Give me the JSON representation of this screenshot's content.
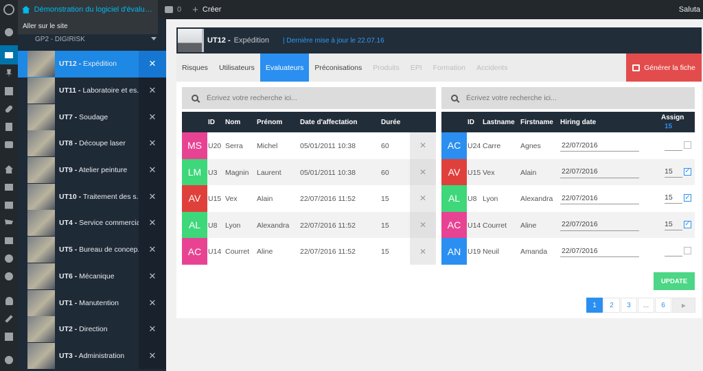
{
  "adminbar": {
    "site_title": "Démonstration du logiciel d'évaluat...",
    "comments_count": "0",
    "new_label": "Créer",
    "greeting": "Saluta",
    "site_dropdown": "Aller sur le site"
  },
  "sidebar": {
    "group": "GP2 - DIGIRISK",
    "units": [
      {
        "ref": "UT12 -",
        "name": "Expédition"
      },
      {
        "ref": "UT11 -",
        "name": "Laboratoire et es..."
      },
      {
        "ref": "UT7 -",
        "name": "Soudage"
      },
      {
        "ref": "UT8 -",
        "name": "Découpe laser"
      },
      {
        "ref": "UT9 -",
        "name": "Atelier peinture"
      },
      {
        "ref": "UT10 -",
        "name": "Traitement des s..."
      },
      {
        "ref": "UT4 -",
        "name": "Service commercial"
      },
      {
        "ref": "UT5 -",
        "name": "Bureau de concep..."
      },
      {
        "ref": "UT6 -",
        "name": "Mécanique"
      },
      {
        "ref": "UT1 -",
        "name": "Manutention"
      },
      {
        "ref": "UT2 -",
        "name": "Direction"
      },
      {
        "ref": "UT3 -",
        "name": "Administration"
      }
    ],
    "close_glyph": "✕"
  },
  "header": {
    "ref": "UT12 -",
    "name": "Expédition",
    "updated": "| Dernière mise à jour le 22.07.16"
  },
  "tabs": [
    {
      "label": "Risques",
      "state": "normal"
    },
    {
      "label": "Utilisateurs",
      "state": "normal"
    },
    {
      "label": "Evaluateurs",
      "state": "active"
    },
    {
      "label": "Préconisations",
      "state": "normal"
    },
    {
      "label": "Produits",
      "state": "disabled"
    },
    {
      "label": "EPI",
      "state": "disabled"
    },
    {
      "label": "Formation",
      "state": "disabled"
    },
    {
      "label": "Accidents",
      "state": "disabled"
    }
  ],
  "generate_label": "Générer la fiche",
  "left": {
    "search_placeholder": "Écrivez votre recherche ici...",
    "columns": {
      "id": "ID",
      "nom": "Nom",
      "prenom": "Prénom",
      "date": "Date d'affectation",
      "duree": "Durée"
    },
    "rows": [
      {
        "initials": "MS",
        "color": "#e84393",
        "id": "U20",
        "nom": "Serra",
        "prenom": "Michel",
        "date": "05/01/2011 10:38",
        "duree": "60"
      },
      {
        "initials": "LM",
        "color": "#3ed77a",
        "id": "U3",
        "nom": "Magnin",
        "prenom": "Laurent",
        "date": "05/01/2011 10:38",
        "duree": "60"
      },
      {
        "initials": "AV",
        "color": "#e0403b",
        "id": "U15",
        "nom": "Vex",
        "prenom": "Alain",
        "date": "22/07/2016 11:52",
        "duree": "15"
      },
      {
        "initials": "AL",
        "color": "#3ed77a",
        "id": "U8",
        "nom": "Lyon",
        "prenom": "Alexandra",
        "date": "22/07/2016 11:52",
        "duree": "15"
      },
      {
        "initials": "AC",
        "color": "#e84393",
        "id": "U14",
        "nom": "Courret",
        "prenom": "Aline",
        "date": "22/07/2016 11:52",
        "duree": "15"
      }
    ],
    "delete_glyph": "✕"
  },
  "right": {
    "search_placeholder": "Écrivez votre recherche ici...",
    "columns": {
      "id": "ID",
      "lastname": "Lastname",
      "firstname": "Firstname",
      "hiring": "Hiring date",
      "assign": "Assign",
      "assign_value": "15"
    },
    "rows": [
      {
        "initials": "AC",
        "color": "#2a8ff0",
        "id": "U24",
        "lastname": "Carre",
        "firstname": "Agnes",
        "hiring": "22/07/2016",
        "duree": "",
        "checked": false
      },
      {
        "initials": "AV",
        "color": "#e0403b",
        "id": "U15",
        "lastname": "Vex",
        "firstname": "Alain",
        "hiring": "22/07/2016",
        "duree": "15",
        "checked": true
      },
      {
        "initials": "AL",
        "color": "#3ed77a",
        "id": "U8",
        "lastname": "Lyon",
        "firstname": "Alexandra",
        "hiring": "22/07/2016",
        "duree": "15",
        "checked": true
      },
      {
        "initials": "AC",
        "color": "#e84393",
        "id": "U14",
        "lastname": "Courret",
        "firstname": "Aline",
        "hiring": "22/07/2016",
        "duree": "15",
        "checked": true
      },
      {
        "initials": "AN",
        "color": "#2a8ff0",
        "id": "U19",
        "lastname": "Neuil",
        "firstname": "Amanda",
        "hiring": "22/07/2016",
        "duree": "",
        "checked": false
      }
    ],
    "check_glyph": "✓"
  },
  "update_label": "UPDATE",
  "pagination": {
    "pages": [
      "1",
      "2",
      "3",
      "...",
      "6"
    ],
    "current": "1",
    "next_glyph": "▶"
  }
}
